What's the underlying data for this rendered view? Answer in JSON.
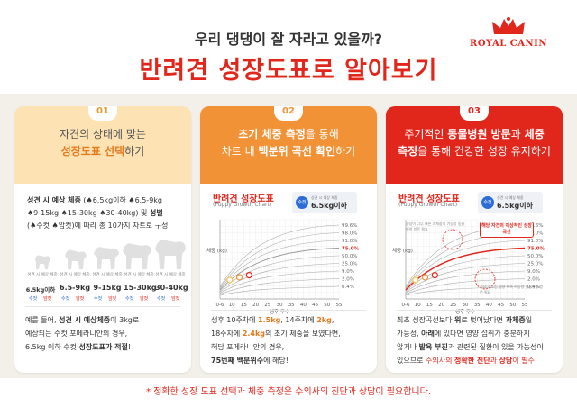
{
  "header": {
    "subtitle": "우리 댕댕이 잘 자라고 있을까?",
    "title": "반려견 성장도표로 알아보기",
    "brand": "ROYAL CANIN"
  },
  "panels": [
    {
      "number": "01",
      "head_line1": "자견의 상태에 맞는",
      "head_line2_hl": "성장도표 선택",
      "head_line2_tail": "하기",
      "body_bold": "성견 시 예상 체중",
      "body_line1_tail": " (♠6.5kg이하 ♠6.5-9kg",
      "body_line2": "♠9-15kg ♠15-30kg ♠30-40kg) 및 ",
      "body_line2_bold": "성별",
      "body_line3": "(♠수컷 ♠암컷)에 따라 총 10가지 차트로 구성",
      "dog_caption": "성견 시 예상 체중",
      "dog_weights": [
        "6.5kg이하",
        "6.5-9kg",
        "9-15kg",
        "15-30kg",
        "30-40kg"
      ],
      "sex_male": "수컷",
      "sex_female": "암컷",
      "foot_1_pre": "예를 들어, ",
      "foot_1_bold": "성견 시 예상체중",
      "foot_1_tail": "이 3kg로",
      "foot_2": "예상되는 수컷 포메라니안의 경우,",
      "foot_3_pre": "6.5kg 이하 수컷 ",
      "foot_3_bold": "성장도표가 적절",
      "foot_3_tail": "!"
    },
    {
      "number": "02",
      "head_line1_hl": "초기 체중 측정",
      "head_line1_tail": "을 통해",
      "head_line2_pre": "차트 내 ",
      "head_line2_hl": "백분위 곡선 확인",
      "head_line2_tail": "하기",
      "chart_title": "반려견 성장도표",
      "chart_subtitle": "(Puppy Growth Chart)",
      "chip_sex": "수컷",
      "chip_caption": "성견 시 예상 체중",
      "chip_weight": "6.5kg이하",
      "foot_1_pre": "생후 10주차에 ",
      "foot_1_v1": "1.5kg",
      "foot_1_mid": ", 14주차에 ",
      "foot_1_v2": "2kg",
      "foot_1_tail": ",",
      "foot_2_pre": "18주차에 ",
      "foot_2_v3": "2.4kg",
      "foot_2_tail": "의 초기 체중을 보였다면,",
      "foot_3": "해당 포메라니안의 경우,",
      "foot_4_bold": "75번째 백분위수",
      "foot_4_tail": "에 해당!"
    },
    {
      "number": "03",
      "head_line1_pre": "주기적인 ",
      "head_line1_hl": "동물병원 방문",
      "head_line1_mid": "과 ",
      "head_line1_hl2": "체중",
      "head_line2_hl": "측정",
      "head_line2_tail": "을 통해 건강한 성장 유지하기",
      "chart_title": "반려견 성장도표",
      "chart_subtitle": "(Puppy Growth Chart)",
      "chip_sex": "수컷",
      "chip_caption": "성견 시 예상 체중",
      "chip_weight": "6.5kg이하",
      "callout": "해당 자견의 이상적인 성장곡선",
      "note_top": "성장이 너무 빠른 과체중의 가능성 동물병원 방문 필요",
      "note_bottom": "성장이 느린 영양 부족 가능성 동물병원 방문 필요",
      "foot_1_pre": "최초 성장곡선보다 ",
      "foot_1_b1": "위",
      "foot_1_mid": "로 벗어났다면 ",
      "foot_1_b2": "과체중",
      "foot_1_tail": "일",
      "foot_2_pre": "가능성, ",
      "foot_2_b": "아래",
      "foot_2_tail": "에 있다면 영양 섭취가 충분하지",
      "foot_3_pre": "않거나 ",
      "foot_3_b": "발육 부진",
      "foot_3_tail": "과 관련된 질환이 있을 가능성이",
      "foot_4_pre": "있으므로 ",
      "foot_4_r1": "수의사의 ",
      "foot_4_r2": "정확한 진단",
      "foot_4_r3": "과 ",
      "foot_4_r4": "상담",
      "foot_4_r5": "이 필수!"
    }
  ],
  "chart_data": [
    {
      "type": "line",
      "title": "반려견 성장도표",
      "subtitle": "(Puppy Growth Chart)",
      "xlabel": "생후 주수",
      "ylabel": "체중 (kg)",
      "x_ticks": [
        "0-6",
        "10",
        "15",
        "20",
        "25",
        "30",
        "35",
        "40",
        "45",
        "50",
        "55"
      ],
      "percentiles": [
        "99.6%",
        "98.0%",
        "91.0%",
        "75.0%",
        "50.0%",
        "25.0%",
        "9.0%",
        "2.0%",
        "0.4%"
      ],
      "highlight": "75.0%",
      "points": [
        {
          "x": 10,
          "y": 1.5
        },
        {
          "x": 14,
          "y": 2
        },
        {
          "x": 18,
          "y": 2.4
        }
      ]
    },
    {
      "type": "line",
      "title": "반려견 성장도표",
      "subtitle": "(Puppy Growth Chart)",
      "xlabel": "생후 주수",
      "ylabel": "체중 (kg)",
      "x_ticks": [
        "0-6",
        "10",
        "15",
        "20",
        "25",
        "30",
        "35",
        "40",
        "45",
        "50",
        "55"
      ],
      "percentiles": [
        "99.6%",
        "98.0%",
        "91.0%",
        "75.0%",
        "50.0%",
        "25.0%",
        "9.0%",
        "2.0%",
        "0.4%"
      ],
      "highlight": "75.0%",
      "points": [
        {
          "x": 10,
          "y": 1.5
        },
        {
          "x": 14,
          "y": 2
        },
        {
          "x": 18,
          "y": 2.4
        }
      ]
    }
  ],
  "footnote": "* 정확한 성장 도표 선택과 체중 측정은 수의사의 진단과 상담이 필요합니다.",
  "colors": {
    "brand_red": "#e1261c",
    "orange": "#f29236",
    "peach": "#fde2b4",
    "male_blue": "#2b6cd6"
  }
}
